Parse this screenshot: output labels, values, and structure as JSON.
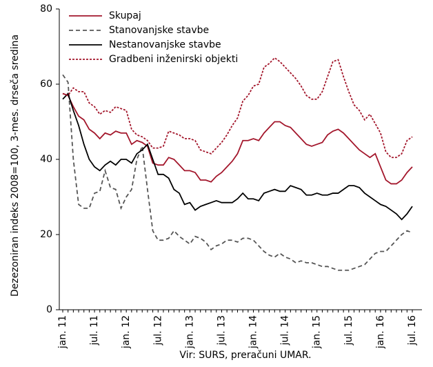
{
  "chart_data": {
    "type": "line",
    "y_label": "Dezezoniran indeks 2008=100, 3-mes. drseča sredina",
    "source": "Vir: SURS, preračuni UMAR.",
    "categories": [
      "jan. 11",
      null,
      null,
      null,
      null,
      null,
      "jul. 11",
      null,
      null,
      null,
      null,
      null,
      "jan. 12",
      null,
      null,
      null,
      null,
      null,
      "jul. 12",
      null,
      null,
      null,
      null,
      null,
      "jan. 13",
      null,
      null,
      null,
      null,
      null,
      "jul. 13",
      null,
      null,
      null,
      null,
      null,
      "jan. 14",
      null,
      null,
      null,
      null,
      null,
      "jul. 14",
      null,
      null,
      null,
      null,
      null,
      "jan. 15",
      null,
      null,
      null,
      null,
      null,
      "jul. 15",
      null,
      null,
      null,
      null,
      null,
      "jan. 16",
      null,
      null,
      null,
      null,
      null,
      "jul. 16"
    ],
    "ylim": [
      0,
      80
    ],
    "yticks": [
      0,
      20,
      40,
      60,
      80
    ],
    "legend": "top-left",
    "series": [
      {
        "name": "Skupaj",
        "color": "#a3162b",
        "dash": "solid",
        "values": [
          57.5,
          57,
          54,
          51.5,
          50.5,
          48,
          47,
          45.5,
          47,
          46.5,
          47.5,
          47,
          47,
          44,
          45,
          44.5,
          43.5,
          39,
          38.5,
          38.5,
          40.5,
          40,
          38.5,
          37,
          37,
          36.5,
          34.5,
          34.5,
          34,
          35.5,
          36.5,
          38,
          39.5,
          41.5,
          45,
          45,
          45.5,
          45,
          47,
          48.5,
          50,
          50,
          49,
          48.5,
          47,
          45.5,
          44,
          43.5,
          44,
          44.5,
          46.5,
          47.5,
          48,
          47,
          45.5,
          44,
          42.5,
          41.5,
          40.5,
          41.5,
          38,
          34.5,
          33.5,
          33.5,
          34.5,
          36.5,
          38
        ]
      },
      {
        "name": "Stanovanjske stavbe",
        "color": "#555555",
        "dash": "dashed",
        "values": [
          62.5,
          60.5,
          40,
          28,
          27,
          27,
          31,
          31.5,
          37,
          32.5,
          32,
          27,
          30,
          32,
          40,
          43.5,
          32,
          21,
          18.5,
          18.5,
          19,
          21,
          19.5,
          18.5,
          17.5,
          19.5,
          19,
          18,
          16,
          17,
          17.5,
          18.5,
          18.5,
          18,
          19,
          19,
          18.5,
          17,
          15.5,
          14.5,
          14,
          15,
          14,
          13.5,
          12.5,
          13,
          12.5,
          12.5,
          12,
          11.5,
          11.5,
          11,
          10.5,
          10.5,
          10.5,
          11,
          11.5,
          12,
          13.5,
          15,
          15.5,
          15.5,
          17,
          18.5,
          20,
          21,
          20.5
        ]
      },
      {
        "name": "Nestanovanjske stavbe",
        "color": "#000000",
        "dash": "solid",
        "values": [
          56,
          57.5,
          53,
          49,
          44,
          40,
          38,
          37,
          38.5,
          39.5,
          38.5,
          40,
          40,
          39,
          41.5,
          42.5,
          44,
          40,
          36,
          36,
          35,
          32,
          31,
          28,
          28.5,
          26.5,
          27.5,
          28,
          28.5,
          29,
          28.5,
          28.5,
          28.5,
          29.5,
          31,
          29.5,
          29.5,
          29,
          31,
          31.5,
          32,
          31.5,
          31.5,
          33,
          32.5,
          32,
          30.5,
          30.5,
          31,
          30.5,
          30.5,
          31,
          31,
          32,
          33,
          33,
          32.5,
          31,
          30,
          29,
          28,
          27.5,
          26.5,
          25.5,
          24,
          25.5,
          27.5
        ]
      },
      {
        "name": "Gradbeni inženirski objekti",
        "color": "#a3162b",
        "dash": "dotted",
        "values": [
          57.5,
          57,
          59,
          58,
          58,
          55,
          54,
          52,
          53,
          52.5,
          54,
          53.5,
          53,
          48,
          46.5,
          46,
          45,
          43,
          43,
          43.5,
          47.5,
          47,
          46.5,
          45.5,
          45.5,
          45,
          42.5,
          42,
          41.5,
          43,
          44.5,
          46.5,
          49,
          51,
          55.5,
          57,
          59.5,
          60,
          64.5,
          65.5,
          67,
          66,
          64.5,
          63,
          61.5,
          59.5,
          57,
          56,
          56,
          58,
          62,
          66,
          66.5,
          62,
          58,
          54.5,
          53,
          50.5,
          52,
          49.5,
          47,
          42,
          40.5,
          40.5,
          41.5,
          45,
          46
        ]
      }
    ]
  }
}
